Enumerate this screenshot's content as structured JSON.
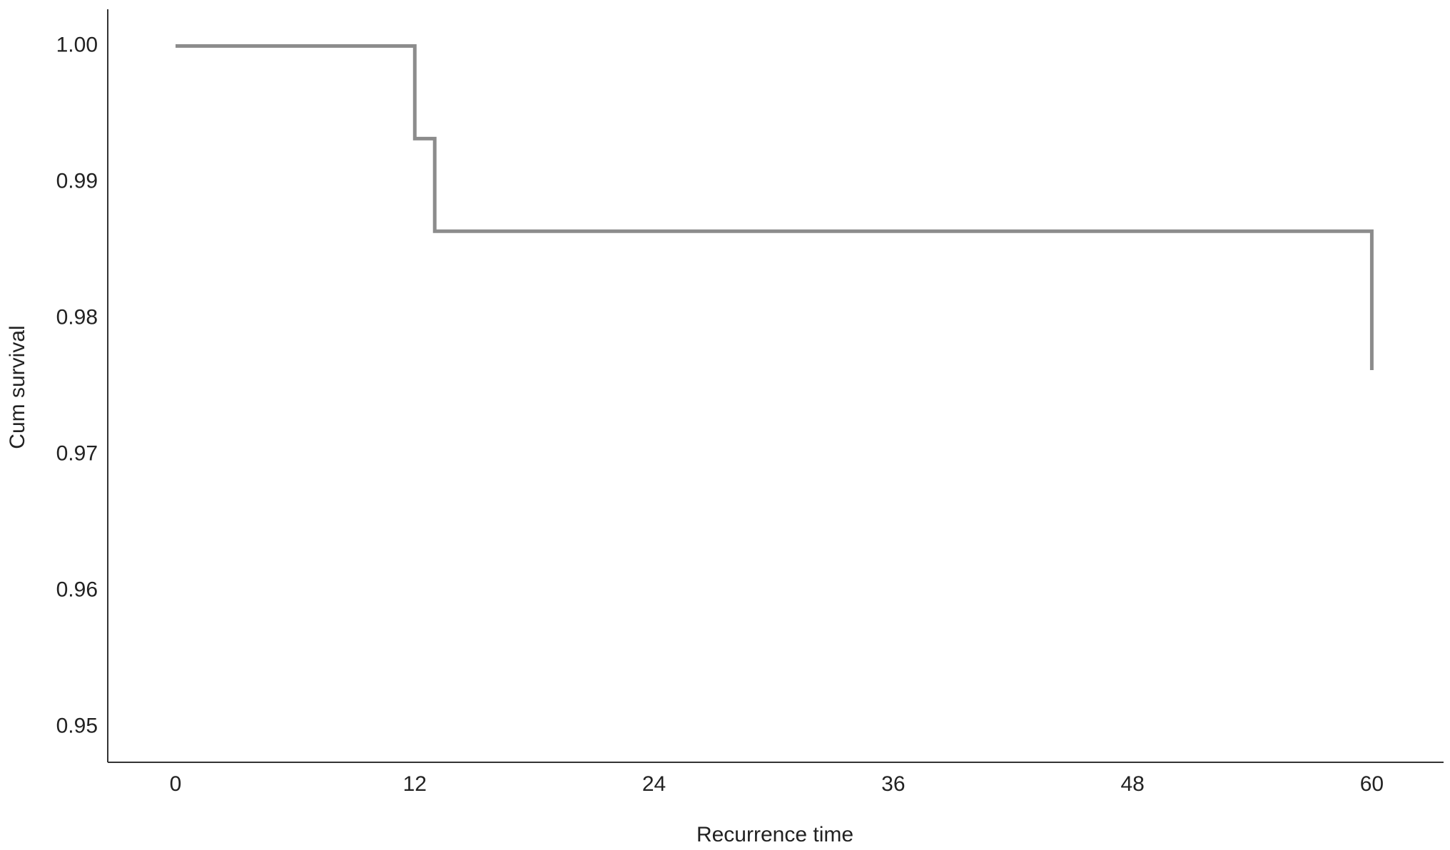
{
  "chart_data": {
    "type": "line",
    "x_label": "Recurrence time",
    "y_label": "Cum survival",
    "series": [
      {
        "color": "#8c8c8c",
        "x": [
          0,
          12,
          12,
          13,
          13,
          60,
          60
        ],
        "values": [
          1.0,
          1.0,
          0.9932,
          0.9932,
          0.9864,
          0.9864,
          0.9762
        ]
      }
    ],
    "xlim": [
      -3.4,
      63.6
    ],
    "xticks": [
      0,
      12,
      24,
      36,
      48,
      60
    ],
    "ylim": [
      0.9474,
      1.0027
    ],
    "yticks": [
      0.95,
      0.96,
      0.97,
      0.98,
      0.99,
      {
        "value": 1,
        "label": "1.00"
      }
    ],
    "grid": false
  }
}
